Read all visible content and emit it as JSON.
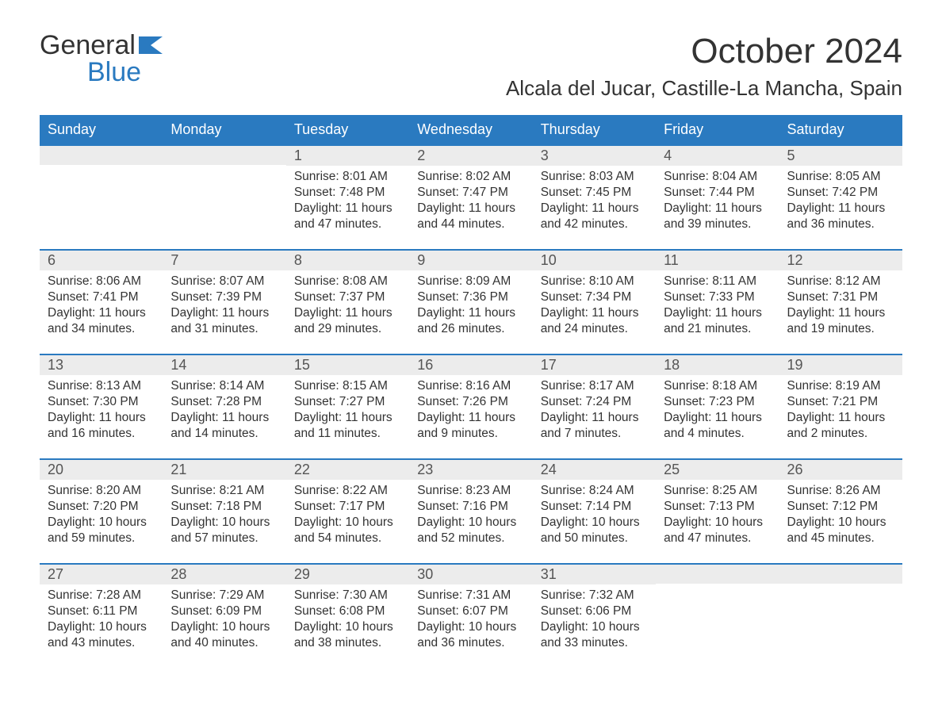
{
  "brand": {
    "name_part1": "General",
    "name_part2": "Blue",
    "logo_color": "#2a7ac0"
  },
  "title": "October 2024",
  "location": "Alcala del Jucar, Castille-La Mancha, Spain",
  "colors": {
    "header_bg": "#2a7ac0",
    "header_text": "#ffffff",
    "daybar_bg": "#ececec",
    "daybar_border": "#2a7ac0",
    "body_text": "#333333",
    "page_bg": "#ffffff"
  },
  "weekdays": [
    "Sunday",
    "Monday",
    "Tuesday",
    "Wednesday",
    "Thursday",
    "Friday",
    "Saturday"
  ],
  "weeks": [
    [
      {
        "day": "",
        "sunrise": "",
        "sunset": "",
        "daylight1": "",
        "daylight2": ""
      },
      {
        "day": "",
        "sunrise": "",
        "sunset": "",
        "daylight1": "",
        "daylight2": ""
      },
      {
        "day": "1",
        "sunrise": "Sunrise: 8:01 AM",
        "sunset": "Sunset: 7:48 PM",
        "daylight1": "Daylight: 11 hours",
        "daylight2": "and 47 minutes."
      },
      {
        "day": "2",
        "sunrise": "Sunrise: 8:02 AM",
        "sunset": "Sunset: 7:47 PM",
        "daylight1": "Daylight: 11 hours",
        "daylight2": "and 44 minutes."
      },
      {
        "day": "3",
        "sunrise": "Sunrise: 8:03 AM",
        "sunset": "Sunset: 7:45 PM",
        "daylight1": "Daylight: 11 hours",
        "daylight2": "and 42 minutes."
      },
      {
        "day": "4",
        "sunrise": "Sunrise: 8:04 AM",
        "sunset": "Sunset: 7:44 PM",
        "daylight1": "Daylight: 11 hours",
        "daylight2": "and 39 minutes."
      },
      {
        "day": "5",
        "sunrise": "Sunrise: 8:05 AM",
        "sunset": "Sunset: 7:42 PM",
        "daylight1": "Daylight: 11 hours",
        "daylight2": "and 36 minutes."
      }
    ],
    [
      {
        "day": "6",
        "sunrise": "Sunrise: 8:06 AM",
        "sunset": "Sunset: 7:41 PM",
        "daylight1": "Daylight: 11 hours",
        "daylight2": "and 34 minutes."
      },
      {
        "day": "7",
        "sunrise": "Sunrise: 8:07 AM",
        "sunset": "Sunset: 7:39 PM",
        "daylight1": "Daylight: 11 hours",
        "daylight2": "and 31 minutes."
      },
      {
        "day": "8",
        "sunrise": "Sunrise: 8:08 AM",
        "sunset": "Sunset: 7:37 PM",
        "daylight1": "Daylight: 11 hours",
        "daylight2": "and 29 minutes."
      },
      {
        "day": "9",
        "sunrise": "Sunrise: 8:09 AM",
        "sunset": "Sunset: 7:36 PM",
        "daylight1": "Daylight: 11 hours",
        "daylight2": "and 26 minutes."
      },
      {
        "day": "10",
        "sunrise": "Sunrise: 8:10 AM",
        "sunset": "Sunset: 7:34 PM",
        "daylight1": "Daylight: 11 hours",
        "daylight2": "and 24 minutes."
      },
      {
        "day": "11",
        "sunrise": "Sunrise: 8:11 AM",
        "sunset": "Sunset: 7:33 PM",
        "daylight1": "Daylight: 11 hours",
        "daylight2": "and 21 minutes."
      },
      {
        "day": "12",
        "sunrise": "Sunrise: 8:12 AM",
        "sunset": "Sunset: 7:31 PM",
        "daylight1": "Daylight: 11 hours",
        "daylight2": "and 19 minutes."
      }
    ],
    [
      {
        "day": "13",
        "sunrise": "Sunrise: 8:13 AM",
        "sunset": "Sunset: 7:30 PM",
        "daylight1": "Daylight: 11 hours",
        "daylight2": "and 16 minutes."
      },
      {
        "day": "14",
        "sunrise": "Sunrise: 8:14 AM",
        "sunset": "Sunset: 7:28 PM",
        "daylight1": "Daylight: 11 hours",
        "daylight2": "and 14 minutes."
      },
      {
        "day": "15",
        "sunrise": "Sunrise: 8:15 AM",
        "sunset": "Sunset: 7:27 PM",
        "daylight1": "Daylight: 11 hours",
        "daylight2": "and 11 minutes."
      },
      {
        "day": "16",
        "sunrise": "Sunrise: 8:16 AM",
        "sunset": "Sunset: 7:26 PM",
        "daylight1": "Daylight: 11 hours",
        "daylight2": "and 9 minutes."
      },
      {
        "day": "17",
        "sunrise": "Sunrise: 8:17 AM",
        "sunset": "Sunset: 7:24 PM",
        "daylight1": "Daylight: 11 hours",
        "daylight2": "and 7 minutes."
      },
      {
        "day": "18",
        "sunrise": "Sunrise: 8:18 AM",
        "sunset": "Sunset: 7:23 PM",
        "daylight1": "Daylight: 11 hours",
        "daylight2": "and 4 minutes."
      },
      {
        "day": "19",
        "sunrise": "Sunrise: 8:19 AM",
        "sunset": "Sunset: 7:21 PM",
        "daylight1": "Daylight: 11 hours",
        "daylight2": "and 2 minutes."
      }
    ],
    [
      {
        "day": "20",
        "sunrise": "Sunrise: 8:20 AM",
        "sunset": "Sunset: 7:20 PM",
        "daylight1": "Daylight: 10 hours",
        "daylight2": "and 59 minutes."
      },
      {
        "day": "21",
        "sunrise": "Sunrise: 8:21 AM",
        "sunset": "Sunset: 7:18 PM",
        "daylight1": "Daylight: 10 hours",
        "daylight2": "and 57 minutes."
      },
      {
        "day": "22",
        "sunrise": "Sunrise: 8:22 AM",
        "sunset": "Sunset: 7:17 PM",
        "daylight1": "Daylight: 10 hours",
        "daylight2": "and 54 minutes."
      },
      {
        "day": "23",
        "sunrise": "Sunrise: 8:23 AM",
        "sunset": "Sunset: 7:16 PM",
        "daylight1": "Daylight: 10 hours",
        "daylight2": "and 52 minutes."
      },
      {
        "day": "24",
        "sunrise": "Sunrise: 8:24 AM",
        "sunset": "Sunset: 7:14 PM",
        "daylight1": "Daylight: 10 hours",
        "daylight2": "and 50 minutes."
      },
      {
        "day": "25",
        "sunrise": "Sunrise: 8:25 AM",
        "sunset": "Sunset: 7:13 PM",
        "daylight1": "Daylight: 10 hours",
        "daylight2": "and 47 minutes."
      },
      {
        "day": "26",
        "sunrise": "Sunrise: 8:26 AM",
        "sunset": "Sunset: 7:12 PM",
        "daylight1": "Daylight: 10 hours",
        "daylight2": "and 45 minutes."
      }
    ],
    [
      {
        "day": "27",
        "sunrise": "Sunrise: 7:28 AM",
        "sunset": "Sunset: 6:11 PM",
        "daylight1": "Daylight: 10 hours",
        "daylight2": "and 43 minutes."
      },
      {
        "day": "28",
        "sunrise": "Sunrise: 7:29 AM",
        "sunset": "Sunset: 6:09 PM",
        "daylight1": "Daylight: 10 hours",
        "daylight2": "and 40 minutes."
      },
      {
        "day": "29",
        "sunrise": "Sunrise: 7:30 AM",
        "sunset": "Sunset: 6:08 PM",
        "daylight1": "Daylight: 10 hours",
        "daylight2": "and 38 minutes."
      },
      {
        "day": "30",
        "sunrise": "Sunrise: 7:31 AM",
        "sunset": "Sunset: 6:07 PM",
        "daylight1": "Daylight: 10 hours",
        "daylight2": "and 36 minutes."
      },
      {
        "day": "31",
        "sunrise": "Sunrise: 7:32 AM",
        "sunset": "Sunset: 6:06 PM",
        "daylight1": "Daylight: 10 hours",
        "daylight2": "and 33 minutes."
      },
      {
        "day": "",
        "sunrise": "",
        "sunset": "",
        "daylight1": "",
        "daylight2": ""
      },
      {
        "day": "",
        "sunrise": "",
        "sunset": "",
        "daylight1": "",
        "daylight2": ""
      }
    ]
  ]
}
